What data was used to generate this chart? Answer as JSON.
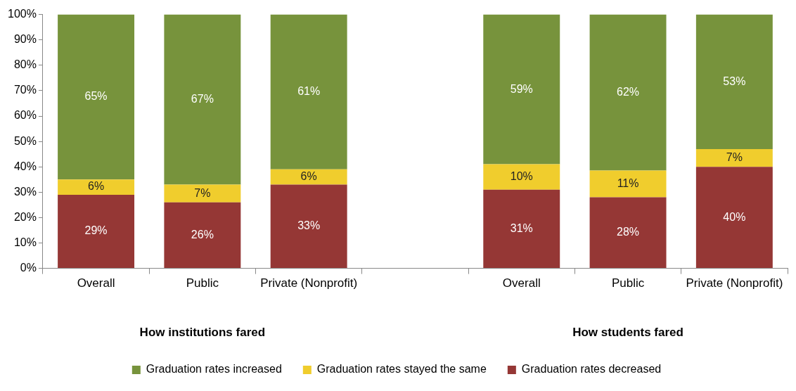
{
  "chart_data": {
    "type": "bar",
    "stacked": true,
    "categories": [
      "Overall",
      "Public",
      "Private (Nonprofit)",
      null,
      "Overall",
      "Public",
      "Private (Nonprofit)"
    ],
    "series": [
      {
        "name": "Graduation rates decreased",
        "color": "#953735",
        "values": [
          29,
          26,
          33,
          null,
          31,
          28,
          40
        ],
        "value_labels": [
          "29%",
          "26%",
          "33%",
          null,
          "31%",
          "28%",
          "40%"
        ]
      },
      {
        "name": "Graduation rates stayed the same",
        "color": "#f0cd2d",
        "values": [
          6,
          7,
          6,
          null,
          10,
          10.5,
          7
        ],
        "value_labels": [
          "6%",
          "7%",
          "6%",
          null,
          "10%",
          "11%",
          "7%"
        ]
      },
      {
        "name": "Graduation rates increased",
        "color": "#77933c",
        "values": [
          65,
          67,
          61,
          null,
          59,
          61.5,
          53
        ],
        "value_labels": [
          "65%",
          "67%",
          "61%",
          null,
          "59%",
          "62%",
          "53%"
        ]
      }
    ],
    "ylim": [
      0,
      100
    ],
    "yticks": [
      {
        "value": 0,
        "label": "0%"
      },
      {
        "value": 10,
        "label": "10%"
      },
      {
        "value": 20,
        "label": "20%"
      },
      {
        "value": 30,
        "label": "30%"
      },
      {
        "value": 40,
        "label": "40%"
      },
      {
        "value": 50,
        "label": "50%"
      },
      {
        "value": 60,
        "label": "60%"
      },
      {
        "value": 70,
        "label": "70%"
      },
      {
        "value": 80,
        "label": "80%"
      },
      {
        "value": 90,
        "label": "90%"
      },
      {
        "value": 100,
        "label": "100%"
      }
    ],
    "annotations": [
      "How institutions fared",
      "How students fared"
    ],
    "grid": false,
    "legend": "bottom"
  }
}
